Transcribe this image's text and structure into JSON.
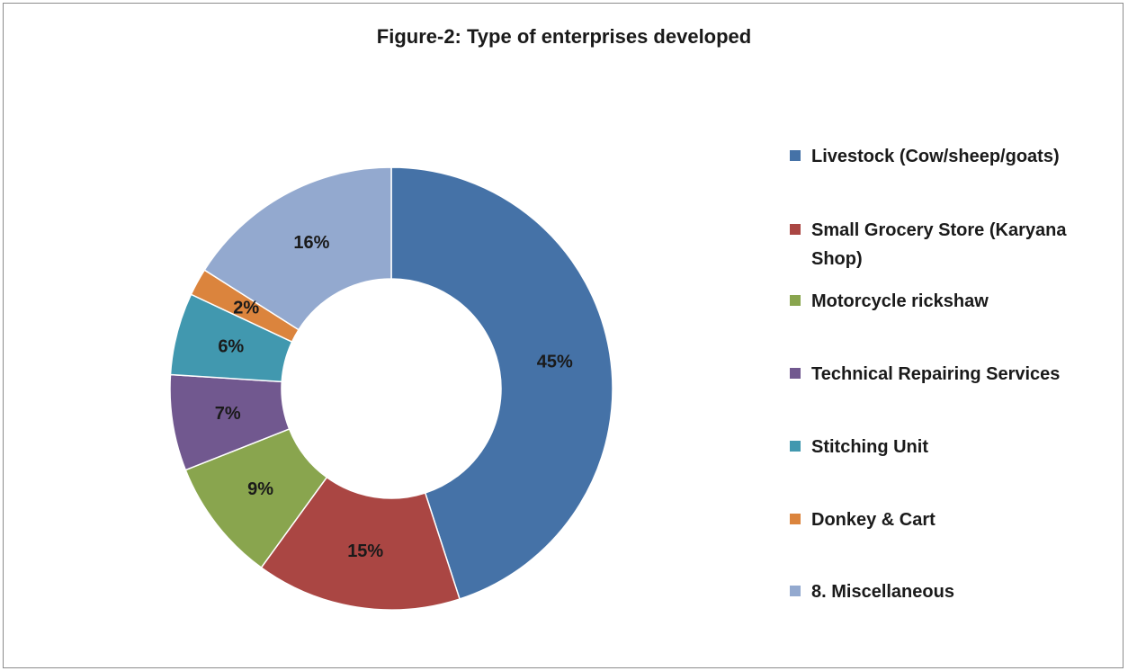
{
  "chart_data": {
    "type": "pie",
    "title": "Figure-2: Type of enterprises developed",
    "categories": [
      "Livestock (Cow/sheep/goats)",
      "Small Grocery Store (Karyana Shop)",
      "Motorcycle rickshaw",
      "Technical Repairing Services",
      "Stitching Unit",
      "Donkey & Cart",
      "8. Miscellaneous"
    ],
    "values": [
      45,
      15,
      9,
      7,
      6,
      2,
      16
    ],
    "data_labels": [
      "45%",
      "15%",
      "9%",
      "7%",
      "6%",
      "2%",
      "16%"
    ],
    "colors": [
      "#4572a7",
      "#aa4643",
      "#89a54e",
      "#71588f",
      "#4198af",
      "#db843d",
      "#93a9cf"
    ],
    "style": "doughnut",
    "legend_position": "right"
  }
}
